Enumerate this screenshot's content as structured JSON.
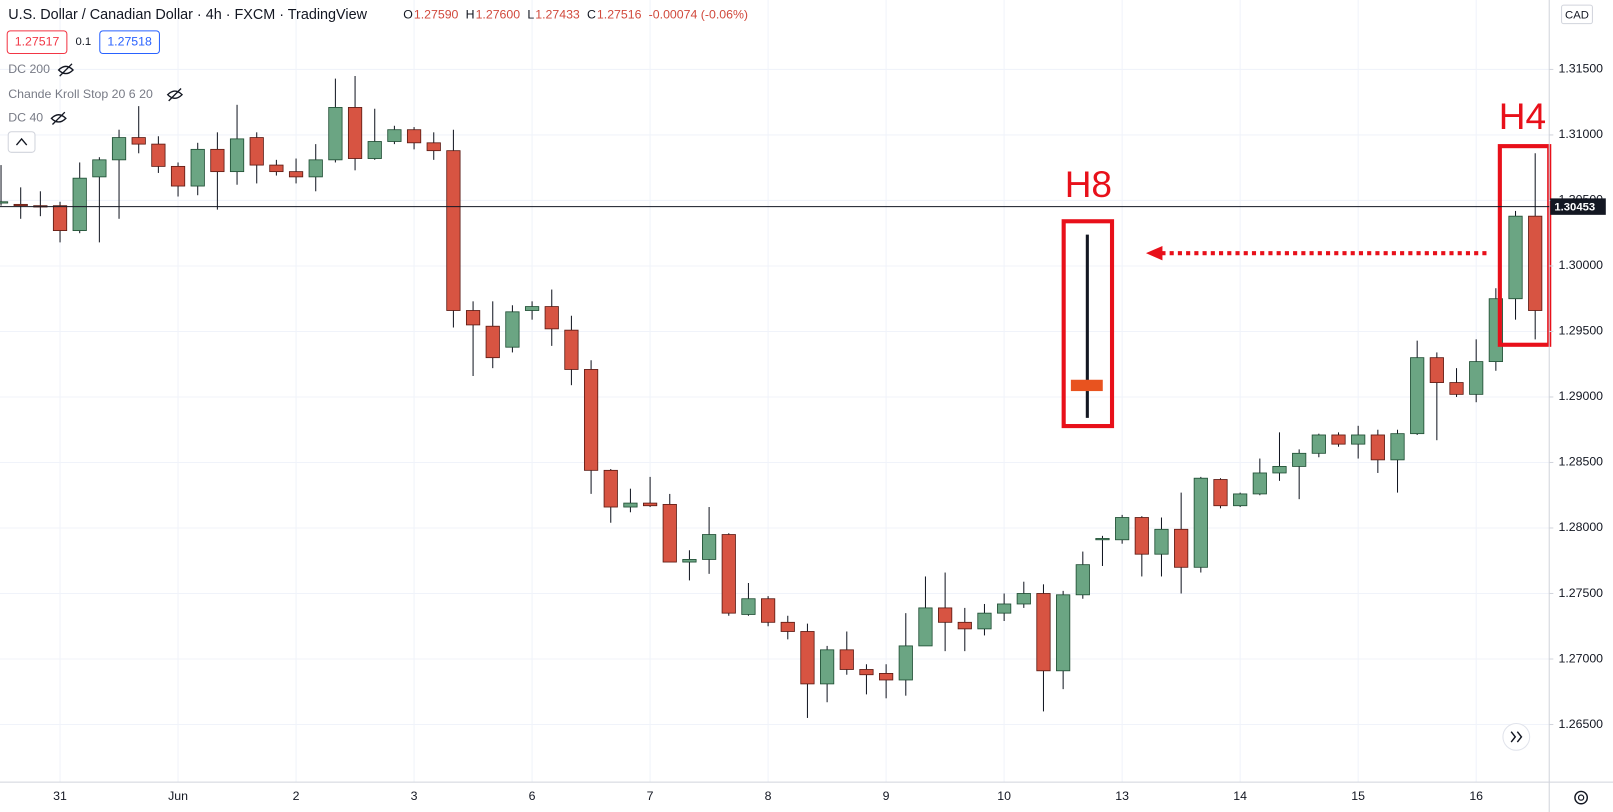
{
  "chart_data": {
    "type": "candlestick",
    "title": "U.S. Dollar / Canadian Dollar · 4h · FXCM · TradingView",
    "ohlc_legend": [
      {
        "label": "O",
        "value": "1.27590"
      },
      {
        "label": "H",
        "value": "1.27600"
      },
      {
        "label": "L",
        "value": "1.27433"
      },
      {
        "label": "C",
        "value": "1.27516"
      }
    ],
    "change": "-0.00074 (-0.06%)",
    "sell_price": "1.27517",
    "spread": "0.1",
    "buy_price": "1.27518",
    "indicators": [
      "DC 200",
      "Chande Kroll Stop 20 6 20",
      "DC 40"
    ],
    "currency": "CAD",
    "annotations": [
      "H8",
      "H4"
    ],
    "price_line": 1.30453,
    "up_color": "#6ba583",
    "down_color": "#d75442",
    "grid": true,
    "categories": [
      null,
      null,
      null,
      "31",
      null,
      null,
      null,
      null,
      null,
      "Jun",
      null,
      null,
      null,
      null,
      null,
      "2",
      null,
      null,
      null,
      null,
      null,
      "3",
      null,
      null,
      null,
      null,
      null,
      "6",
      null,
      null,
      null,
      null,
      null,
      "7",
      null,
      null,
      null,
      null,
      null,
      "8",
      null,
      null,
      null,
      null,
      null,
      "9",
      null,
      null,
      null,
      null,
      null,
      "10",
      null,
      null,
      null,
      null,
      null,
      "13",
      null,
      null,
      null,
      null,
      null,
      "14",
      null,
      null,
      null,
      null,
      null,
      "15",
      null,
      null,
      null,
      null,
      null,
      "16",
      null,
      null,
      null
    ],
    "open": [
      1.3048,
      1.3047,
      1.3046,
      1.3046,
      1.3027,
      1.3068,
      1.3081,
      1.3098,
      1.3093,
      1.3076,
      1.3061,
      1.3089,
      1.3072,
      1.3098,
      1.3077,
      1.3072,
      1.3068,
      1.3081,
      1.3121,
      1.3082,
      1.3095,
      1.3104,
      1.3094,
      1.3088,
      1.2966,
      1.2954,
      1.2938,
      1.2966,
      1.2969,
      1.2951,
      1.2921,
      1.2844,
      1.2816,
      1.2819,
      1.2818,
      1.2774,
      1.2776,
      1.2795,
      1.2734,
      1.2746,
      1.2728,
      1.2721,
      1.2681,
      1.2707,
      1.2692,
      1.2689,
      1.2684,
      1.271,
      1.2739,
      1.2728,
      1.2723,
      1.2735,
      1.2742,
      1.275,
      1.2691,
      1.2749,
      1.2791,
      1.2791,
      1.2808,
      1.278,
      1.2799,
      1.277,
      1.2837,
      1.2817,
      1.2826,
      1.2842,
      1.2847,
      1.2857,
      1.2871,
      1.2864,
      1.2871,
      1.2852,
      1.2872,
      1.293,
      1.2911,
      1.2902,
      1.2927,
      1.2975,
      1.3038
    ],
    "high": [
      1.3077,
      1.306,
      1.3057,
      1.3049,
      1.3079,
      1.3083,
      1.3104,
      1.3122,
      1.3099,
      1.3079,
      1.3094,
      1.3102,
      1.3123,
      1.3102,
      1.3081,
      1.3082,
      1.3093,
      1.3143,
      1.3145,
      1.312,
      1.3107,
      1.3106,
      1.3102,
      1.3104,
      1.2973,
      1.2973,
      1.297,
      1.2973,
      1.2982,
      1.2962,
      1.2928,
      1.2845,
      1.283,
      1.2839,
      1.2826,
      1.2783,
      1.2816,
      1.2796,
      1.2758,
      1.2748,
      1.2733,
      1.2727,
      1.271,
      1.2721,
      1.2696,
      1.2696,
      1.2735,
      1.2763,
      1.2766,
      1.2739,
      1.2742,
      1.275,
      1.2759,
      1.2757,
      1.2752,
      1.2782,
      1.2794,
      1.281,
      1.2809,
      1.2808,
      1.2827,
      1.2839,
      1.2838,
      1.2827,
      1.2853,
      1.2873,
      1.286,
      1.2872,
      1.2873,
      1.2878,
      1.2875,
      1.2875,
      1.2943,
      1.2934,
      1.2922,
      1.2944,
      1.2983,
      1.3042,
      1.3086
    ],
    "low": [
      1.3046,
      1.3036,
      1.3038,
      1.3018,
      1.3025,
      1.3018,
      1.3036,
      1.3086,
      1.3071,
      1.3053,
      1.3054,
      1.3043,
      1.3062,
      1.3063,
      1.3069,
      1.3063,
      1.3057,
      1.3079,
      1.3073,
      1.3081,
      1.3093,
      1.3089,
      1.3081,
      1.2953,
      1.2916,
      1.2922,
      1.2934,
      1.2959,
      1.2939,
      1.2909,
      1.2826,
      1.2804,
      1.2812,
      1.2816,
      1.2774,
      1.276,
      1.2765,
      1.2733,
      1.2733,
      1.2725,
      1.2715,
      1.2655,
      1.2667,
      1.2688,
      1.2673,
      1.267,
      1.2672,
      1.271,
      1.2706,
      1.2706,
      1.2718,
      1.2729,
      1.2739,
      1.266,
      1.2677,
      1.2746,
      1.2771,
      1.2788,
      1.2763,
      1.2763,
      1.275,
      1.2766,
      1.2815,
      1.2816,
      1.2825,
      1.2836,
      1.2822,
      1.2854,
      1.2862,
      1.2853,
      1.2842,
      1.2827,
      1.2871,
      1.2867,
      1.29,
      1.2896,
      1.292,
      1.2959,
      1.2944
    ],
    "close": [
      1.3049,
      1.3046,
      1.3045,
      1.3027,
      1.3067,
      1.3081,
      1.3098,
      1.3093,
      1.3076,
      1.3061,
      1.3089,
      1.3072,
      1.3097,
      1.3077,
      1.3072,
      1.3068,
      1.3081,
      1.3121,
      1.3082,
      1.3095,
      1.3104,
      1.3094,
      1.3088,
      1.2966,
      1.2955,
      1.293,
      1.2965,
      1.2969,
      1.2952,
      1.2921,
      1.2844,
      1.2816,
      1.2819,
      1.2817,
      1.2774,
      1.2776,
      1.2795,
      1.2735,
      1.2746,
      1.2728,
      1.2721,
      1.2681,
      1.2707,
      1.2692,
      1.2688,
      1.2684,
      1.271,
      1.2739,
      1.2728,
      1.2723,
      1.2735,
      1.2742,
      1.275,
      1.2691,
      1.2749,
      1.2772,
      1.2792,
      1.2808,
      1.278,
      1.2799,
      1.277,
      1.2838,
      1.2817,
      1.2826,
      1.2842,
      1.2847,
      1.2857,
      1.2871,
      1.2864,
      1.2871,
      1.2852,
      1.2872,
      1.293,
      1.2911,
      1.2902,
      1.2927,
      1.2975,
      1.3038,
      1.2966
    ],
    "ylim": [
      1.2606,
      1.3203
    ],
    "yticks": [
      {
        "value": 1.265,
        "label": "1.26500"
      },
      {
        "value": 1.27,
        "label": "1.27000"
      },
      {
        "value": 1.275,
        "label": "1.27500"
      },
      {
        "value": 1.28,
        "label": "1.28000"
      },
      {
        "value": 1.285,
        "label": "1.28500"
      },
      {
        "value": 1.29,
        "label": "1.29000"
      },
      {
        "value": 1.295,
        "label": "1.29500"
      },
      {
        "value": 1.3,
        "label": "1.30000"
      },
      {
        "value": 1.305,
        "label": "1.30500"
      },
      {
        "value": 1.31,
        "label": "1.31000"
      },
      {
        "value": 1.315,
        "label": "1.31500"
      }
    ]
  }
}
